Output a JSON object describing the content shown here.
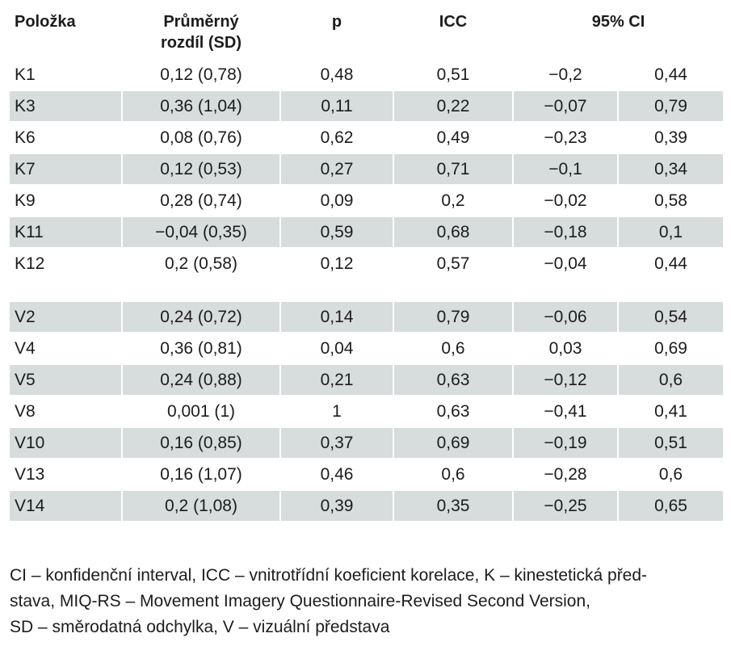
{
  "table": {
    "headers": {
      "polozka": "Položka",
      "rozdil_line1": "Průměrný",
      "rozdil_line2": "rozdíl (SD)",
      "p": "p",
      "icc": "ICC",
      "ci": "95% CI"
    },
    "rows": [
      {
        "item": "K1",
        "diff": "0,12 (0,78)",
        "p": "0,48",
        "icc": "0,51",
        "ci_low": "−0,2",
        "ci_high": "0,44"
      },
      {
        "item": "K3",
        "diff": "0,36 (1,04)",
        "p": "0,11",
        "icc": "0,22",
        "ci_low": "−0,07",
        "ci_high": "0,79"
      },
      {
        "item": "K6",
        "diff": "0,08 (0,76)",
        "p": "0,62",
        "icc": "0,49",
        "ci_low": "−0,23",
        "ci_high": "0,39"
      },
      {
        "item": "K7",
        "diff": "0,12 (0,53)",
        "p": "0,27",
        "icc": "0,71",
        "ci_low": "−0,1",
        "ci_high": "0,34"
      },
      {
        "item": "K9",
        "diff": "0,28 (0,74)",
        "p": "0,09",
        "icc": "0,2",
        "ci_low": "−0,02",
        "ci_high": "0,58"
      },
      {
        "item": "K11",
        "diff": "−0,04 (0,35)",
        "p": "0,59",
        "icc": "0,68",
        "ci_low": "−0,18",
        "ci_high": "0,1"
      },
      {
        "item": "K12",
        "diff": "0,2 (0,58)",
        "p": "0,12",
        "icc": "0,57",
        "ci_low": "−0,04",
        "ci_high": "0,44"
      },
      {
        "item": "V2",
        "diff": "0,24 (0,72)",
        "p": "0,14",
        "icc": "0,79",
        "ci_low": "−0,06",
        "ci_high": "0,54"
      },
      {
        "item": "V4",
        "diff": "0,36 (0,81)",
        "p": "0,04",
        "icc": "0,6",
        "ci_low": "0,03",
        "ci_high": "0,69"
      },
      {
        "item": "V5",
        "diff": "0,24 (0,88)",
        "p": "0,21",
        "icc": "0,63",
        "ci_low": "−0,12",
        "ci_high": "0,6"
      },
      {
        "item": "V8",
        "diff": "0,001 (1)",
        "p": "1",
        "icc": "0,63",
        "ci_low": "−0,41",
        "ci_high": "0,41"
      },
      {
        "item": "V10",
        "diff": "0,16 (0,85)",
        "p": "0,37",
        "icc": "0,69",
        "ci_low": "−0,19",
        "ci_high": "0,51"
      },
      {
        "item": "V13",
        "diff": "0,16 (1,07)",
        "p": "0,46",
        "icc": "0,6",
        "ci_low": "−0,28",
        "ci_high": "0,6"
      },
      {
        "item": "V14",
        "diff": "0,2 (1,08)",
        "p": "0,39",
        "icc": "0,35",
        "ci_low": "−0,25",
        "ci_high": "0,65"
      }
    ],
    "shade_color": "#d7dcdc"
  },
  "footnote": {
    "line1": "CI – konfidenční interval, ICC – vnitrotřídní koeficient korelace, K – kinestetická před-",
    "line2": "stava, MIQ-RS – Movement Imagery Questionnaire-Revised Second Version,",
    "line3": "SD – směrodatná odchylka, V – vizuální představa"
  }
}
